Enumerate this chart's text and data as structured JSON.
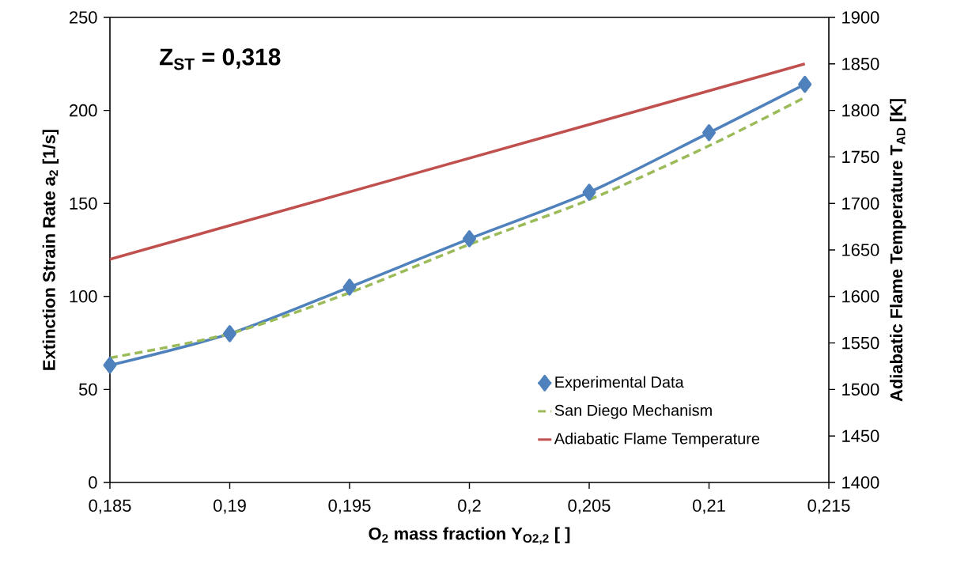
{
  "chart_data": {
    "type": "line",
    "xlabel": "O$_{2}$ mass fraction Y$_{O2,2}$ [ ]",
    "ylabel": "Extinction Strain Rate a$_{2}$ [1/s]",
    "y2label": "Adiabatic Flame Temperature T$_{AD}$ [K]",
    "annotations": [
      "Z$_{ST}$ = 0,318"
    ],
    "x": [
      0.185,
      0.19,
      0.195,
      0.2,
      0.205,
      0.21,
      0.214
    ],
    "series": [
      {
        "name": "Experimental Data",
        "color": "#4f81bd",
        "values": [
          63,
          80,
          105,
          131,
          156,
          188,
          214
        ],
        "marker": "diamond",
        "line_style": "solid"
      },
      {
        "name": "San Diego Mechanism",
        "color": "#9bbb59",
        "values": [
          67,
          80,
          102,
          128,
          152,
          181,
          207
        ],
        "marker": "none",
        "line_style": "dashed"
      },
      {
        "name": "Adiabatic Flame Temperature",
        "color": "#c0504d",
        "x": [
          0.185,
          0.214
        ],
        "values": [
          1640,
          1850
        ],
        "marker": "none",
        "line_style": "solid",
        "axis": "y2"
      }
    ],
    "xlim": [
      0.185,
      0.215
    ],
    "xticks": [
      {
        "value": 0.185,
        "label": "0,185"
      },
      {
        "value": 0.19,
        "label": "0,19"
      },
      {
        "value": 0.195,
        "label": "0,195"
      },
      {
        "value": 0.2,
        "label": "0,2"
      },
      {
        "value": 0.205,
        "label": "0,205"
      },
      {
        "value": 0.21,
        "label": "0,21"
      },
      {
        "value": 0.215,
        "label": "0,215"
      }
    ],
    "ylim": [
      0,
      250
    ],
    "yticks": [
      0,
      50,
      100,
      150,
      200,
      250
    ],
    "y2lim": [
      1400,
      1900
    ],
    "y2ticks": [
      1400,
      1450,
      1500,
      1550,
      1600,
      1650,
      1700,
      1750,
      1800,
      1850,
      1900
    ],
    "legend": "bottom right",
    "grid": false
  }
}
